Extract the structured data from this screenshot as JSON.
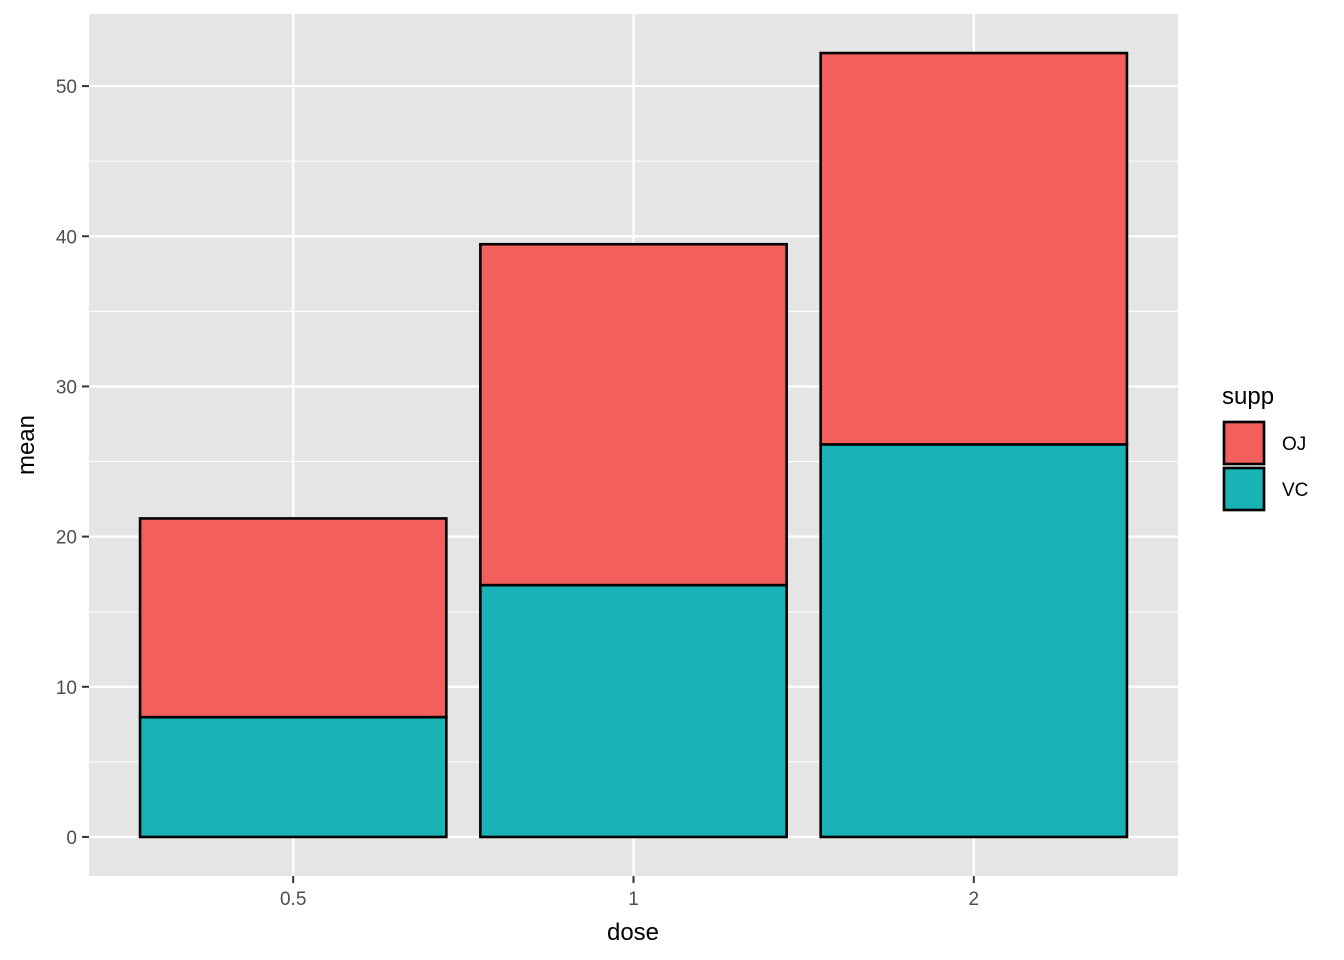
{
  "chart_data": {
    "type": "bar",
    "stacked": true,
    "categories": [
      "0.5",
      "1",
      "2"
    ],
    "series": [
      {
        "name": "OJ",
        "values": [
          13.23,
          22.7,
          26.06
        ],
        "color": "#F35F5B"
      },
      {
        "name": "VC",
        "values": [
          7.98,
          16.77,
          26.14
        ],
        "color": "#19B3B7"
      }
    ],
    "stack_order_bottom_to_top": [
      "VC",
      "OJ"
    ],
    "xlabel": "dose",
    "ylabel": "mean",
    "ylim": [
      -2.6,
      54.8
    ],
    "yticks": [
      0,
      10,
      20,
      30,
      40,
      50
    ],
    "ytick_labels": [
      "0",
      "10",
      "20",
      "30",
      "40",
      "50"
    ],
    "grid": true,
    "panel_background": "#E5E5E5",
    "bar_outline": "#000000",
    "legend": {
      "title": "supp",
      "position": "right",
      "entries": [
        "OJ",
        "VC"
      ]
    }
  }
}
